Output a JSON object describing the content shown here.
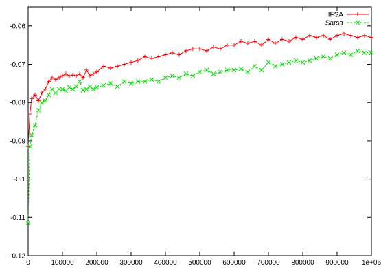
{
  "chart_data": {
    "type": "line",
    "title": "",
    "xlabel": "",
    "ylabel": "",
    "xlim": [
      0,
      1000000
    ],
    "ylim": [
      -0.12,
      -0.055
    ],
    "x_ticks": [
      0,
      100000,
      200000,
      300000,
      400000,
      500000,
      600000,
      700000,
      800000,
      900000,
      1000000
    ],
    "x_tick_labels": [
      "0",
      "100000",
      "200000",
      "300000",
      "400000",
      "500000",
      "600000",
      "700000",
      "800000",
      "900000",
      "1e+06"
    ],
    "y_ticks": [
      -0.12,
      -0.11,
      -0.1,
      -0.09,
      -0.08,
      -0.07,
      -0.06
    ],
    "y_tick_labels": [
      "-0.12",
      "-0.11",
      "-0.1",
      "-0.09",
      "-0.08",
      "-0.07",
      "-0.06"
    ],
    "grid": false,
    "legend_position": "top-right",
    "series": [
      {
        "name": "IFSA",
        "color": "#ff0000",
        "style": "solid",
        "marker": "plus",
        "x": [
          0,
          5000,
          10000,
          20000,
          30000,
          40000,
          50000,
          60000,
          70000,
          80000,
          90000,
          100000,
          110000,
          120000,
          130000,
          140000,
          150000,
          160000,
          170000,
          180000,
          190000,
          200000,
          220000,
          240000,
          260000,
          280000,
          300000,
          320000,
          340000,
          360000,
          380000,
          400000,
          420000,
          440000,
          460000,
          480000,
          500000,
          520000,
          540000,
          560000,
          580000,
          600000,
          620000,
          640000,
          660000,
          680000,
          700000,
          720000,
          740000,
          760000,
          780000,
          800000,
          820000,
          840000,
          860000,
          880000,
          900000,
          920000,
          940000,
          960000,
          980000,
          1000000
        ],
        "y": [
          -0.0915,
          -0.083,
          -0.079,
          -0.078,
          -0.0795,
          -0.0775,
          -0.0765,
          -0.0745,
          -0.0735,
          -0.074,
          -0.0735,
          -0.073,
          -0.0725,
          -0.073,
          -0.0728,
          -0.073,
          -0.0725,
          -0.0735,
          -0.0715,
          -0.073,
          -0.0725,
          -0.072,
          -0.0705,
          -0.071,
          -0.0705,
          -0.07,
          -0.0695,
          -0.069,
          -0.068,
          -0.0685,
          -0.068,
          -0.0675,
          -0.067,
          -0.0675,
          -0.0665,
          -0.066,
          -0.066,
          -0.0665,
          -0.0655,
          -0.066,
          -0.065,
          -0.065,
          -0.064,
          -0.0645,
          -0.064,
          -0.065,
          -0.0635,
          -0.0645,
          -0.0635,
          -0.064,
          -0.063,
          -0.0635,
          -0.0625,
          -0.063,
          -0.0625,
          -0.0635,
          -0.0625,
          -0.062,
          -0.0625,
          -0.063,
          -0.0625,
          -0.063
        ]
      },
      {
        "name": "Sarsa",
        "color": "#00dd00",
        "style": "dashed",
        "marker": "cross",
        "x": [
          0,
          5000,
          10000,
          20000,
          30000,
          40000,
          50000,
          60000,
          70000,
          80000,
          90000,
          100000,
          110000,
          120000,
          130000,
          140000,
          150000,
          160000,
          170000,
          180000,
          190000,
          200000,
          220000,
          240000,
          260000,
          280000,
          300000,
          320000,
          340000,
          360000,
          380000,
          400000,
          420000,
          440000,
          460000,
          480000,
          500000,
          520000,
          540000,
          560000,
          580000,
          600000,
          620000,
          640000,
          660000,
          680000,
          700000,
          720000,
          740000,
          760000,
          780000,
          800000,
          820000,
          840000,
          860000,
          880000,
          900000,
          920000,
          940000,
          960000,
          980000,
          1000000
        ],
        "y": [
          -0.1115,
          -0.0915,
          -0.0885,
          -0.086,
          -0.082,
          -0.08,
          -0.0795,
          -0.078,
          -0.0765,
          -0.0775,
          -0.0765,
          -0.0765,
          -0.077,
          -0.076,
          -0.0765,
          -0.0758,
          -0.0745,
          -0.0768,
          -0.0765,
          -0.0758,
          -0.0765,
          -0.076,
          -0.0755,
          -0.075,
          -0.0758,
          -0.0745,
          -0.075,
          -0.0745,
          -0.0745,
          -0.074,
          -0.0745,
          -0.0735,
          -0.073,
          -0.0735,
          -0.0725,
          -0.073,
          -0.072,
          -0.0715,
          -0.0725,
          -0.072,
          -0.0715,
          -0.0715,
          -0.0712,
          -0.072,
          -0.0705,
          -0.0715,
          -0.0695,
          -0.0705,
          -0.07,
          -0.0695,
          -0.069,
          -0.0695,
          -0.069,
          -0.0685,
          -0.068,
          -0.0685,
          -0.0675,
          -0.067,
          -0.0675,
          -0.0665,
          -0.067,
          -0.067
        ]
      }
    ]
  }
}
